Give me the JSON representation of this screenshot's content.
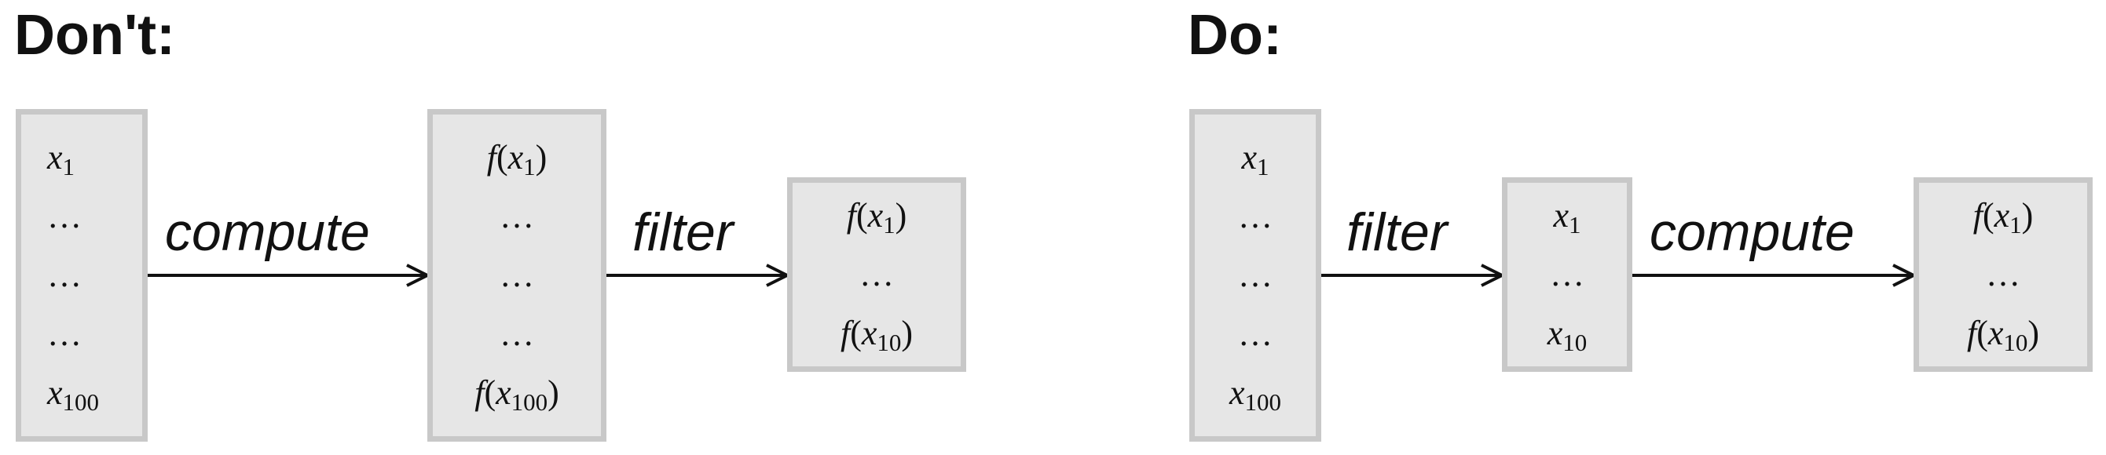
{
  "dont": {
    "heading": "Don't:",
    "input_box": [
      "x|1",
      "...",
      "...",
      "...",
      "x|100"
    ],
    "op1": "compute",
    "mid_box": [
      "f(x|1)",
      "...",
      "...",
      "...",
      "f(x|100)"
    ],
    "op2": "filter",
    "out_box": [
      "f(x|1)",
      "...",
      "f(x|10)"
    ]
  },
  "do": {
    "heading": "Do:",
    "input_box": [
      "x|1",
      "...",
      "...",
      "...",
      "x|100"
    ],
    "op1": "filter",
    "mid_box": [
      "x|1",
      "...",
      "x|10"
    ],
    "op2": "compute",
    "out_box": [
      "f(x|1)",
      "...",
      "f(x|10)"
    ]
  }
}
